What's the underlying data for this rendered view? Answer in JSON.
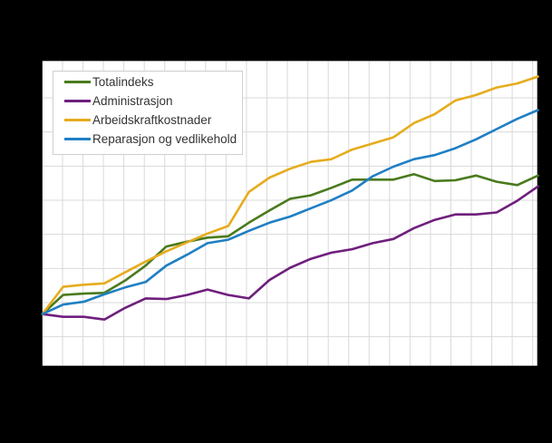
{
  "chart": {
    "background_color": "#000000",
    "plot_background_color": "#ffffff",
    "gridline_color": "#d9d9d9",
    "plot_border_color": "#000000"
  },
  "chart_data": {
    "type": "line",
    "title": "",
    "grid": true,
    "legend_position": "top-left inside plot area",
    "axis_tick_labels_visible": false,
    "baseline": 100,
    "ylim_estimate": [
      92.3,
      137.2
    ],
    "x": [
      0,
      1,
      2,
      3,
      4,
      5,
      6,
      7,
      8,
      9,
      10,
      11,
      12,
      13,
      14,
      15,
      16,
      17,
      18,
      19,
      20,
      21,
      22,
      23,
      24
    ],
    "x_note": "25 evenly spaced points (index series, likely quarterly); axis labels are not visible in the image",
    "series": [
      {
        "name": "Totalindeks",
        "color": "#4a7a1d",
        "values": [
          100,
          102.8,
          103.0,
          103.1,
          104.9,
          107.1,
          109.9,
          110.6,
          111.2,
          111.4,
          113.4,
          115.2,
          116.9,
          117.4,
          118.5,
          119.7,
          119.7,
          119.7,
          120.5,
          119.5,
          119.6,
          120.3,
          119.4,
          118.9,
          120.3
        ]
      },
      {
        "name": "Administrasjon",
        "color": "#6f1f7d",
        "values": [
          100,
          99.6,
          99.6,
          99.2,
          100.9,
          102.3,
          102.2,
          102.8,
          103.6,
          102.8,
          102.3,
          105.0,
          106.8,
          108.1,
          109.0,
          109.5,
          110.4,
          111.0,
          112.6,
          113.8,
          114.6,
          114.6,
          114.9,
          116.6,
          118.7
        ]
      },
      {
        "name": "Arbeidskraftkostnader",
        "color": "#e6ac1e",
        "values": [
          100,
          104.0,
          104.3,
          104.5,
          106.1,
          107.7,
          109.2,
          110.5,
          111.8,
          112.9,
          117.9,
          120.0,
          121.3,
          122.3,
          122.7,
          124.1,
          125.0,
          125.9,
          128.0,
          129.3,
          131.3,
          132.1,
          133.2,
          133.8,
          134.8
        ]
      },
      {
        "name": "Reparasjon og vedlikehold",
        "color": "#1f7fc4",
        "values": [
          100,
          101.4,
          101.8,
          102.9,
          103.9,
          104.7,
          107.1,
          108.7,
          110.4,
          110.9,
          112.2,
          113.4,
          114.3,
          115.5,
          116.7,
          118.1,
          120.2,
          121.6,
          122.7,
          123.3,
          124.3,
          125.6,
          127.1,
          128.6,
          129.9
        ]
      }
    ]
  }
}
